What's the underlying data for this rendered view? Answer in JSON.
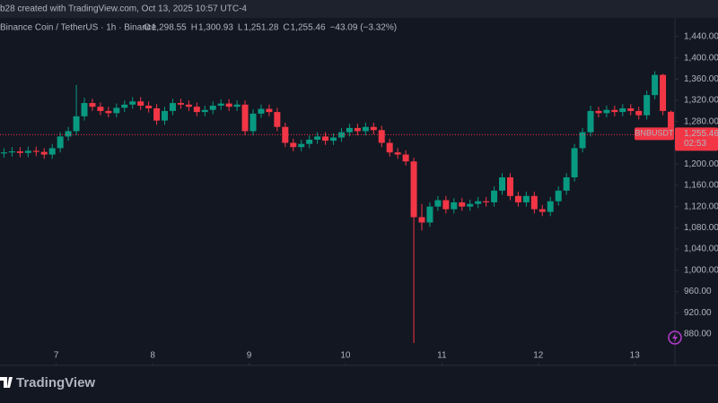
{
  "header": {
    "credit": "b28 created with TradingView.com, Oct 13, 2025 10:57 UTC-4",
    "symbol": "Binance Coin / TetherUS · 1h · Binance",
    "ohlc": [
      {
        "key": "O",
        "value": "1,298.55"
      },
      {
        "key": "H",
        "value": "1,300.93"
      },
      {
        "key": "L",
        "value": "1,251.28"
      },
      {
        "key": "C",
        "value": "1,255.46"
      }
    ],
    "change": "−43.09 (−3.32%)"
  },
  "chart_data": {
    "type": "candlestick",
    "up_color": "#089981",
    "down_color": "#f23645",
    "grid": false,
    "x": [
      0,
      2,
      4,
      6,
      8,
      10,
      12,
      14,
      16,
      18,
      20,
      22,
      24,
      26,
      28,
      30,
      32,
      34,
      36,
      38,
      40,
      42,
      44,
      46,
      48,
      50,
      52,
      54,
      56,
      58,
      60,
      62,
      64,
      66,
      68,
      70,
      72,
      74,
      76,
      78,
      80,
      82,
      84,
      86,
      88,
      90,
      92,
      94,
      96,
      98,
      100,
      102,
      104,
      106,
      108,
      110,
      112,
      114,
      116,
      118,
      120,
      122,
      124,
      126,
      128,
      130,
      132,
      134,
      136,
      138,
      140,
      142,
      144,
      146,
      148,
      150,
      152,
      154,
      156,
      158,
      160,
      162,
      164,
      166
    ],
    "open": [
      1220,
      1222,
      1224,
      1221,
      1225,
      1223,
      1218,
      1230,
      1252,
      1262,
      1290,
      1315,
      1308,
      1300,
      1296,
      1306,
      1312,
      1318,
      1310,
      1305,
      1282,
      1300,
      1315,
      1312,
      1308,
      1298,
      1302,
      1310,
      1314,
      1308,
      1312,
      1262,
      1295,
      1304,
      1298,
      1270,
      1240,
      1232,
      1238,
      1246,
      1252,
      1244,
      1250,
      1260,
      1268,
      1262,
      1270,
      1264,
      1240,
      1222,
      1218,
      1205,
      1100,
      1090,
      1120,
      1132,
      1115,
      1128,
      1120,
      1125,
      1130,
      1128,
      1150,
      1175,
      1140,
      1128,
      1140,
      1115,
      1110,
      1130,
      1150,
      1175,
      1230,
      1260,
      1300,
      1296,
      1302,
      1298,
      1305,
      1300,
      1292,
      1330,
      1368,
      1298.55
    ],
    "high": [
      1230,
      1232,
      1232,
      1233,
      1233,
      1230,
      1238,
      1260,
      1270,
      1349,
      1325,
      1323,
      1316,
      1308,
      1314,
      1320,
      1326,
      1326,
      1318,
      1313,
      1308,
      1323,
      1323,
      1320,
      1316,
      1310,
      1318,
      1322,
      1322,
      1320,
      1320,
      1303,
      1312,
      1312,
      1306,
      1278,
      1248,
      1246,
      1254,
      1260,
      1260,
      1258,
      1268,
      1276,
      1276,
      1278,
      1278,
      1272,
      1248,
      1230,
      1226,
      1212,
      1125,
      1128,
      1140,
      1140,
      1136,
      1136,
      1133,
      1138,
      1138,
      1158,
      1183,
      1183,
      1148,
      1148,
      1148,
      1123,
      1138,
      1158,
      1183,
      1238,
      1268,
      1310,
      1308,
      1310,
      1310,
      1313,
      1313,
      1308,
      1338,
      1375,
      1370,
      1300.93
    ],
    "low": [
      1212,
      1214,
      1213,
      1213,
      1215,
      1210,
      1210,
      1222,
      1244,
      1254,
      1282,
      1300,
      1292,
      1288,
      1288,
      1298,
      1304,
      1302,
      1297,
      1274,
      1274,
      1292,
      1304,
      1300,
      1290,
      1290,
      1294,
      1302,
      1300,
      1300,
      1254,
      1254,
      1287,
      1290,
      1262,
      1232,
      1224,
      1224,
      1230,
      1238,
      1236,
      1236,
      1242,
      1252,
      1254,
      1254,
      1256,
      1232,
      1214,
      1210,
      1197,
      863,
      1075,
      1082,
      1112,
      1107,
      1107,
      1112,
      1112,
      1117,
      1120,
      1120,
      1142,
      1132,
      1120,
      1120,
      1107,
      1102,
      1102,
      1122,
      1142,
      1167,
      1222,
      1252,
      1288,
      1288,
      1290,
      1290,
      1292,
      1284,
      1284,
      1322,
      1292,
      1251.28
    ],
    "close": [
      1222,
      1224,
      1221,
      1225,
      1223,
      1218,
      1230,
      1252,
      1262,
      1290,
      1315,
      1308,
      1300,
      1296,
      1306,
      1312,
      1318,
      1310,
      1305,
      1282,
      1300,
      1315,
      1312,
      1308,
      1298,
      1302,
      1310,
      1314,
      1308,
      1312,
      1262,
      1295,
      1304,
      1298,
      1270,
      1240,
      1232,
      1238,
      1246,
      1252,
      1244,
      1250,
      1260,
      1268,
      1262,
      1270,
      1264,
      1240,
      1222,
      1218,
      1205,
      1100,
      1090,
      1120,
      1132,
      1115,
      1128,
      1120,
      1125,
      1130,
      1128,
      1150,
      1175,
      1140,
      1128,
      1140,
      1115,
      1110,
      1130,
      1150,
      1175,
      1230,
      1260,
      1300,
      1296,
      1302,
      1298,
      1305,
      1300,
      1292,
      1330,
      1368,
      1300,
      1255.46
    ],
    "xlim": [
      0,
      168
    ],
    "xticks": [
      {
        "value": 14,
        "label": "7"
      },
      {
        "value": 38,
        "label": "8"
      },
      {
        "value": 62,
        "label": "9"
      },
      {
        "value": 86,
        "label": "10"
      },
      {
        "value": 110,
        "label": "11"
      },
      {
        "value": 134,
        "label": "12"
      },
      {
        "value": 158,
        "label": "13"
      }
    ],
    "ylim": [
      826,
      1509
    ],
    "yticks": [
      {
        "value": 880,
        "label": "880.00"
      },
      {
        "value": 920,
        "label": "920.00"
      },
      {
        "value": 960,
        "label": "960.00"
      },
      {
        "value": 1000,
        "label": "1,000.00"
      },
      {
        "value": 1040,
        "label": "1,040.00"
      },
      {
        "value": 1080,
        "label": "1,080.00"
      },
      {
        "value": 1120,
        "label": "1,120.00"
      },
      {
        "value": 1160,
        "label": "1,160.00"
      },
      {
        "value": 1200,
        "label": "1,200.00"
      },
      {
        "value": 1240,
        "label": "1,240.00"
      },
      {
        "value": 1280,
        "label": "1,280.00"
      },
      {
        "value": 1320,
        "label": "1,320.00"
      },
      {
        "value": 1360,
        "label": "1,360.00"
      },
      {
        "value": 1400,
        "label": "1,400.00"
      },
      {
        "value": 1440,
        "label": "1,440.00"
      }
    ],
    "last_price_label": "1,255.46",
    "countdown": "02:53",
    "ticker": "BNBUSDT"
  },
  "footer": {
    "brand": "TradingView"
  }
}
